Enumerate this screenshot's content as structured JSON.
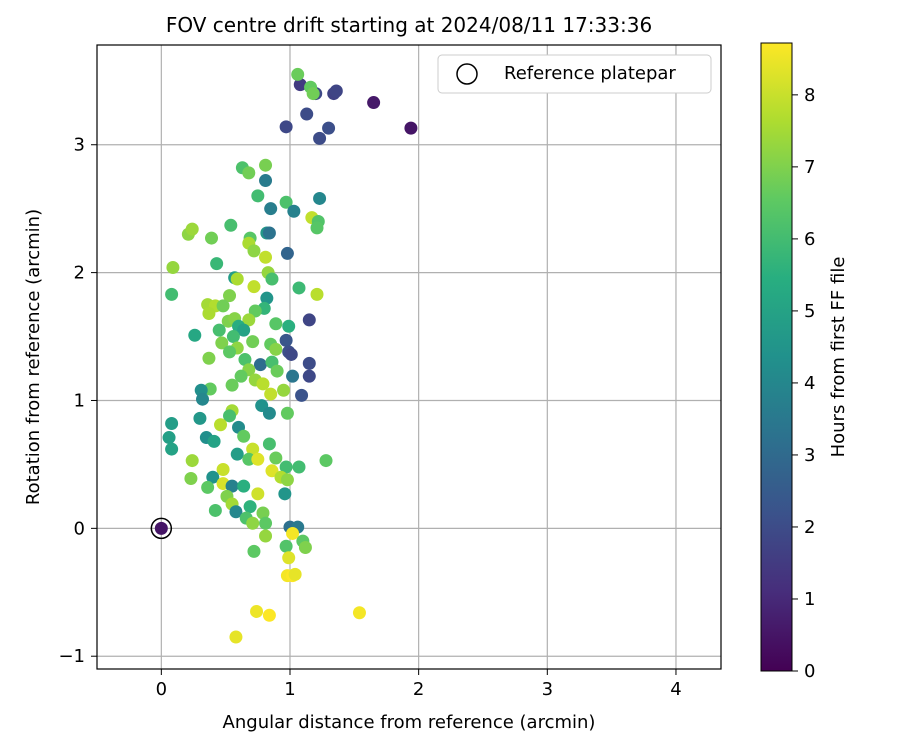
{
  "chart_data": {
    "type": "scatter",
    "title": "FOV centre drift starting at 2024/08/11 17:33:36",
    "xlabel": "Angular distance from reference (arcmin)",
    "ylabel": "Rotation from reference (arcmin)",
    "xlim": [
      -0.5,
      4.35
    ],
    "ylim": [
      -1.1,
      3.78
    ],
    "x_ticks": [
      0,
      1,
      2,
      3,
      4
    ],
    "x_tick_labels": [
      "0",
      "1",
      "2",
      "3",
      "4"
    ],
    "y_ticks": [
      -1,
      0,
      1,
      2,
      3
    ],
    "y_tick_labels": [
      "−1",
      "0",
      "1",
      "2",
      "3"
    ],
    "grid": true,
    "legend": {
      "position": "top-right",
      "entries": [
        "Reference platepar"
      ]
    },
    "colorbar": {
      "label": "Hours from first FF file",
      "colormap": "viridis",
      "range": [
        0,
        8.72
      ],
      "ticks": [
        0,
        1,
        2,
        3,
        4,
        5,
        6,
        7,
        8
      ],
      "tick_labels": [
        "0",
        "1",
        "2",
        "3",
        "4",
        "5",
        "6",
        "7",
        "8"
      ]
    },
    "reference_point": {
      "x": 0,
      "y": 0,
      "c": 0.5
    },
    "series": [
      {
        "points": [
          [
            1.65,
            3.33,
            0.6
          ],
          [
            1.94,
            3.13,
            0.5
          ],
          [
            1.08,
            3.47,
            1.5
          ],
          [
            1.34,
            3.4,
            1.7
          ],
          [
            1.36,
            3.42,
            1.8
          ],
          [
            1.2,
            3.4,
            1.9
          ],
          [
            1.13,
            3.24,
            2.0
          ],
          [
            1.3,
            3.13,
            2.1
          ],
          [
            0.97,
            3.14,
            1.9
          ],
          [
            1.23,
            3.05,
            2.0
          ],
          [
            1.06,
            3.55,
            6.7
          ],
          [
            1.16,
            3.45,
            6.6
          ],
          [
            1.18,
            3.4,
            6.8
          ],
          [
            0.63,
            2.82,
            6.2
          ],
          [
            0.68,
            2.78,
            6.8
          ],
          [
            0.81,
            2.84,
            6.9
          ],
          [
            0.81,
            2.72,
            3.6
          ],
          [
            0.75,
            2.6,
            6.0
          ],
          [
            0.97,
            2.55,
            6.2
          ],
          [
            0.85,
            2.5,
            3.7
          ],
          [
            1.03,
            2.48,
            3.8
          ],
          [
            1.23,
            2.58,
            4.0
          ],
          [
            1.17,
            2.43,
            7.9
          ],
          [
            1.22,
            2.4,
            6.3
          ],
          [
            1.21,
            2.35,
            6.4
          ],
          [
            0.82,
            2.31,
            4.6
          ],
          [
            0.84,
            2.31,
            3.3
          ],
          [
            0.39,
            2.27,
            6.8
          ],
          [
            0.21,
            2.3,
            7.2
          ],
          [
            0.24,
            2.34,
            7.4
          ],
          [
            0.54,
            2.37,
            6.1
          ],
          [
            0.69,
            2.27,
            6.4
          ],
          [
            0.68,
            2.23,
            7.6
          ],
          [
            0.72,
            2.17,
            7.2
          ],
          [
            0.81,
            2.12,
            7.9
          ],
          [
            0.98,
            2.15,
            2.8
          ],
          [
            0.09,
            2.04,
            7.3
          ],
          [
            0.43,
            2.07,
            5.8
          ],
          [
            0.57,
            1.96,
            4.8
          ],
          [
            0.59,
            1.95,
            7.6
          ],
          [
            0.83,
            2.0,
            7.3
          ],
          [
            0.86,
            1.95,
            6.1
          ],
          [
            0.72,
            1.89,
            7.9
          ],
          [
            1.07,
            1.88,
            5.9
          ],
          [
            1.21,
            1.83,
            7.8
          ],
          [
            0.08,
            1.83,
            6.0
          ],
          [
            0.53,
            1.82,
            7.0
          ],
          [
            0.36,
            1.75,
            7.5
          ],
          [
            0.42,
            1.74,
            7.7
          ],
          [
            0.48,
            1.74,
            6.8
          ],
          [
            0.37,
            1.68,
            7.6
          ],
          [
            0.82,
            1.8,
            4.5
          ],
          [
            0.8,
            1.72,
            5.7
          ],
          [
            0.73,
            1.7,
            6.6
          ],
          [
            0.68,
            1.63,
            7.4
          ],
          [
            1.15,
            1.63,
            1.8
          ],
          [
            0.52,
            1.62,
            7.0
          ],
          [
            0.57,
            1.64,
            7.1
          ],
          [
            0.6,
            1.58,
            5.4
          ],
          [
            0.64,
            1.55,
            5.0
          ],
          [
            0.45,
            1.55,
            6.1
          ],
          [
            0.26,
            1.51,
            5.2
          ],
          [
            0.47,
            1.45,
            7.0
          ],
          [
            0.56,
            1.5,
            6.0
          ],
          [
            0.89,
            1.6,
            6.4
          ],
          [
            0.99,
            1.58,
            5.5
          ],
          [
            0.71,
            1.46,
            6.8
          ],
          [
            0.85,
            1.44,
            6.6
          ],
          [
            0.97,
            1.47,
            2.3
          ],
          [
            0.89,
            1.4,
            7.1
          ],
          [
            0.99,
            1.38,
            2.1
          ],
          [
            1.01,
            1.36,
            1.9
          ],
          [
            0.59,
            1.41,
            7.2
          ],
          [
            0.53,
            1.38,
            6.5
          ],
          [
            0.37,
            1.33,
            7.0
          ],
          [
            0.65,
            1.32,
            6.2
          ],
          [
            0.77,
            1.28,
            3.1
          ],
          [
            0.86,
            1.3,
            6.1
          ],
          [
            1.15,
            1.29,
            2.0
          ],
          [
            0.68,
            1.24,
            7.1
          ],
          [
            0.62,
            1.19,
            6.6
          ],
          [
            0.73,
            1.16,
            7.3
          ],
          [
            0.9,
            1.23,
            6.7
          ],
          [
            1.02,
            1.19,
            3.4
          ],
          [
            1.15,
            1.19,
            1.9
          ],
          [
            0.55,
            1.12,
            6.7
          ],
          [
            0.79,
            1.13,
            7.8
          ],
          [
            0.95,
            1.08,
            7.3
          ],
          [
            0.38,
            1.09,
            6.6
          ],
          [
            0.31,
            1.08,
            4.3
          ],
          [
            0.32,
            1.01,
            4.0
          ],
          [
            1.09,
            1.04,
            2.2
          ],
          [
            0.85,
            1.05,
            7.9
          ],
          [
            0.78,
            0.96,
            4.4
          ],
          [
            0.55,
            0.92,
            7.5
          ],
          [
            0.84,
            0.9,
            4.1
          ],
          [
            0.98,
            0.9,
            6.6
          ],
          [
            0.53,
            0.88,
            6.1
          ],
          [
            0.08,
            0.82,
            4.8
          ],
          [
            0.46,
            0.81,
            7.8
          ],
          [
            0.3,
            0.86,
            4.6
          ],
          [
            0.6,
            0.79,
            4.2
          ],
          [
            0.64,
            0.72,
            6.6
          ],
          [
            0.06,
            0.71,
            4.9
          ],
          [
            0.35,
            0.71,
            4.3
          ],
          [
            0.41,
            0.68,
            5.0
          ],
          [
            0.84,
            0.66,
            6.1
          ],
          [
            0.71,
            0.62,
            8.0
          ],
          [
            0.08,
            0.62,
            5.0
          ],
          [
            0.24,
            0.53,
            7.4
          ],
          [
            0.59,
            0.58,
            4.8
          ],
          [
            0.68,
            0.54,
            6.4
          ],
          [
            0.75,
            0.54,
            8.3
          ],
          [
            0.89,
            0.55,
            6.7
          ],
          [
            1.07,
            0.48,
            6.0
          ],
          [
            1.28,
            0.53,
            6.5
          ],
          [
            0.48,
            0.46,
            8.0
          ],
          [
            0.86,
            0.45,
            8.3
          ],
          [
            0.97,
            0.48,
            6.0
          ],
          [
            0.4,
            0.4,
            4.4
          ],
          [
            0.23,
            0.39,
            7.0
          ],
          [
            0.48,
            0.35,
            8.2
          ],
          [
            0.36,
            0.32,
            6.5
          ],
          [
            0.55,
            0.33,
            3.8
          ],
          [
            0.64,
            0.33,
            5.5
          ],
          [
            0.93,
            0.4,
            7.7
          ],
          [
            0.98,
            0.38,
            7.2
          ],
          [
            0.51,
            0.25,
            7.0
          ],
          [
            0.75,
            0.27,
            8.1
          ],
          [
            0.96,
            0.27,
            4.5
          ],
          [
            0.42,
            0.14,
            6.2
          ],
          [
            0.55,
            0.19,
            7.5
          ],
          [
            0.58,
            0.13,
            4.0
          ],
          [
            0.69,
            0.17,
            5.6
          ],
          [
            0.79,
            0.12,
            6.9
          ],
          [
            0.66,
            0.08,
            6.2
          ],
          [
            0.81,
            0.04,
            6.5
          ],
          [
            0.71,
            0.04,
            7.2
          ],
          [
            1.0,
            0.01,
            3.2
          ],
          [
            1.06,
            0.01,
            3.5
          ],
          [
            1.02,
            -0.04,
            8.6
          ],
          [
            0.81,
            -0.06,
            7.3
          ],
          [
            0.97,
            -0.14,
            6.3
          ],
          [
            1.1,
            -0.1,
            6.5
          ],
          [
            1.12,
            -0.15,
            7.0
          ],
          [
            0.72,
            -0.18,
            6.5
          ],
          [
            0.99,
            -0.23,
            8.3
          ],
          [
            0.98,
            -0.37,
            8.6
          ],
          [
            1.02,
            -0.37,
            8.7
          ],
          [
            1.04,
            -0.36,
            8.4
          ],
          [
            0.74,
            -0.65,
            8.5
          ],
          [
            0.84,
            -0.68,
            8.7
          ],
          [
            1.54,
            -0.66,
            8.6
          ],
          [
            0.58,
            -0.85,
            8.4
          ]
        ]
      }
    ]
  }
}
